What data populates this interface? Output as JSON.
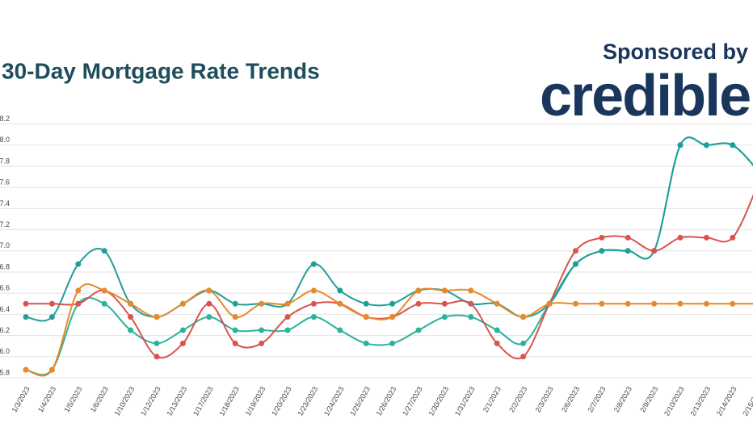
{
  "chart_data": {
    "type": "line",
    "title": "30-Day Mortgage Rate Trends",
    "sponsor_text": "Sponsored by",
    "sponsor_logo": "credible",
    "categories": [
      "1/3/2023",
      "1/4/2023",
      "1/5/2023",
      "1/6/2023",
      "1/10/2023",
      "1/12/2023",
      "1/13/2023",
      "1/17/2023",
      "1/18/2023",
      "1/19/2023",
      "1/20/2023",
      "1/23/2023",
      "1/24/2023",
      "1/25/2023",
      "1/26/2023",
      "1/27/2023",
      "1/30/2023",
      "1/31/2023",
      "2/1/2023",
      "2/2/2023",
      "2/3/2023",
      "2/6/2023",
      "2/7/2023",
      "2/8/2023",
      "2/9/2023",
      "2/10/2023",
      "2/13/2023",
      "2/14/2023",
      "2/15/2023"
    ],
    "series": [
      {
        "color": "#2bb39b",
        "values": [
          5.875,
          5.875,
          6.5,
          6.5,
          6.25,
          6.125,
          6.25,
          6.375,
          6.25,
          6.25,
          6.25,
          6.375,
          6.25,
          6.125,
          6.125,
          6.25,
          6.375,
          6.375,
          6.25,
          6.125,
          6.5,
          6.875,
          7.0,
          7.0,
          7.0,
          8.0,
          8.0,
          8.0,
          7.75
        ]
      },
      {
        "color": "#1f9e9a",
        "values": [
          6.375,
          6.375,
          6.875,
          7.0,
          6.5,
          6.375,
          6.5,
          6.625,
          6.5,
          6.5,
          6.5,
          6.875,
          6.625,
          6.5,
          6.5,
          6.625,
          6.625,
          6.5,
          6.5,
          6.375,
          6.5,
          6.875,
          7.0,
          7.0,
          7.0,
          8.0,
          8.0,
          8.0,
          7.75
        ]
      },
      {
        "color": "#d9534f",
        "values": [
          6.5,
          6.5,
          6.5,
          6.625,
          6.375,
          6.0,
          6.125,
          6.5,
          6.125,
          6.125,
          6.375,
          6.5,
          6.5,
          6.375,
          6.375,
          6.5,
          6.5,
          6.5,
          6.125,
          6.0,
          6.5,
          7.0,
          7.125,
          7.125,
          7.0,
          7.125,
          7.125,
          7.125,
          7.65
        ]
      },
      {
        "color": "#e8892b",
        "values": [
          5.875,
          5.875,
          6.625,
          6.625,
          6.5,
          6.375,
          6.5,
          6.625,
          6.375,
          6.5,
          6.5,
          6.625,
          6.5,
          6.375,
          6.375,
          6.625,
          6.625,
          6.625,
          6.5,
          6.375,
          6.5,
          6.5,
          6.5,
          6.5,
          6.5,
          6.5,
          6.5,
          6.5,
          6.5
        ]
      }
    ],
    "ylim": [
      5.8,
      8.2
    ],
    "yticks": [
      5.8,
      {
        "value": 6,
        "label": "6.0"
      },
      6.2,
      6.4,
      6.6,
      6.8,
      {
        "value": 7,
        "label": "7.0"
      },
      7.2,
      7.4,
      7.6,
      7.8,
      {
        "value": 8,
        "label": "8.0"
      },
      8.2
    ],
    "grid": true
  }
}
